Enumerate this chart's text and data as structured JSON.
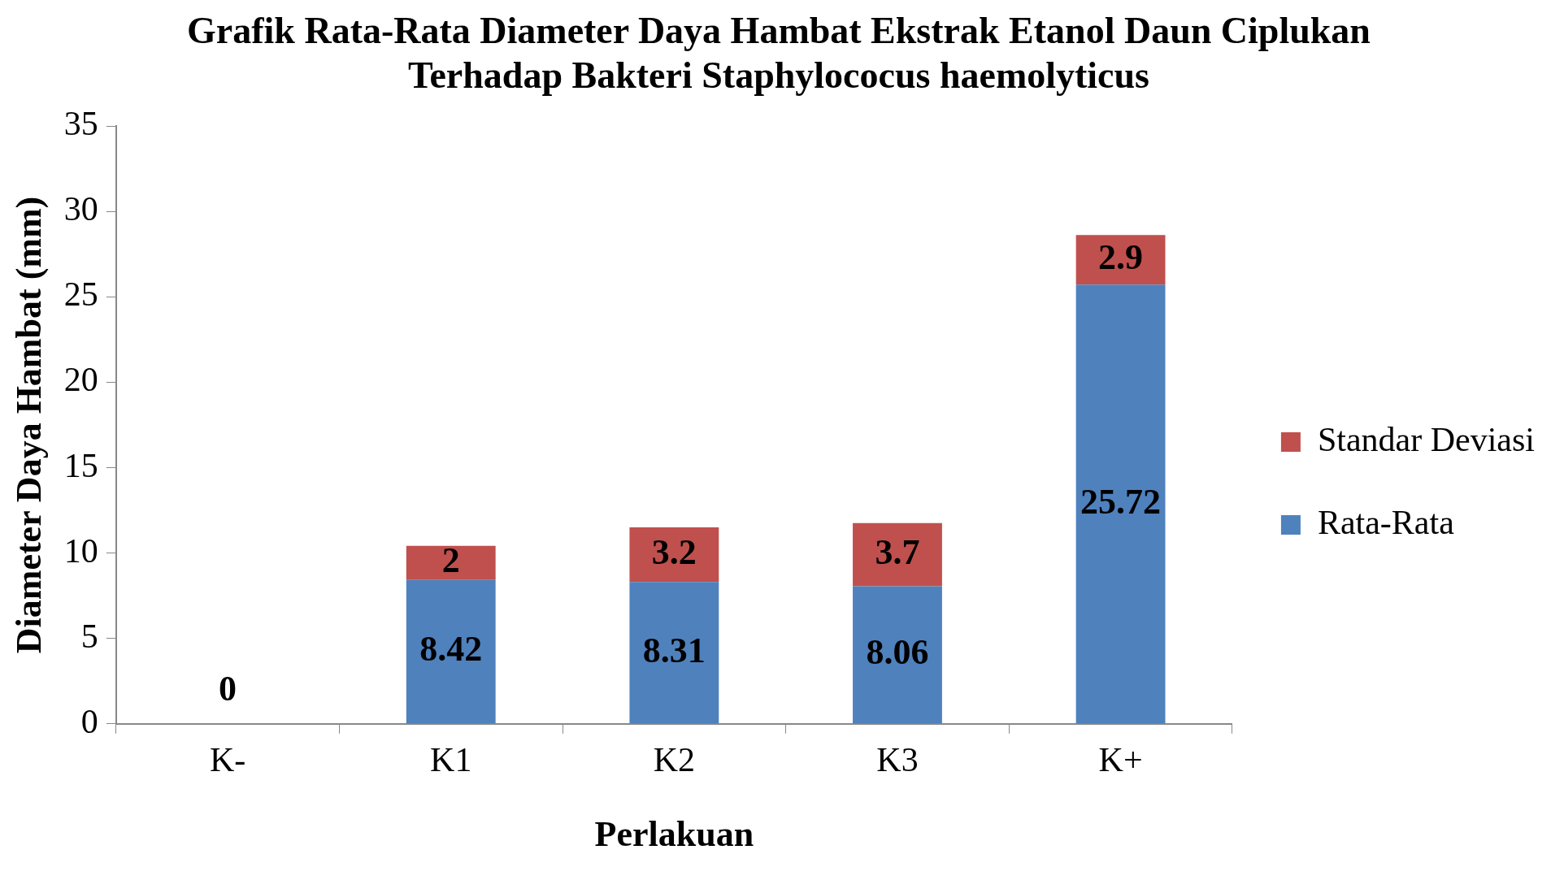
{
  "chart_data": {
    "type": "bar",
    "stacked": true,
    "title": "Grafik Rata-Rata Diameter Daya Hambat Ekstrak Etanol Daun Ciplukan Terhadap Bakteri Staphylococus haemolyticus",
    "xlabel": "Perlakuan",
    "ylabel": "Diameter Daya Hambat (mm)",
    "categories": [
      "K-",
      "K1",
      "K2",
      "K3",
      "K+"
    ],
    "series": [
      {
        "name": "Rata-Rata",
        "color": "#4f81bd",
        "values": [
          0,
          8.42,
          8.31,
          8.06,
          25.72
        ],
        "value_labels": [
          "0",
          "8.42",
          "8.31",
          "8.06",
          "25.72"
        ]
      },
      {
        "name": "Standar Deviasi",
        "color": "#c0504d",
        "values": [
          null,
          2,
          3.2,
          3.7,
          2.9
        ],
        "value_labels": [
          null,
          "2",
          "3.2",
          "3.7",
          "2.9"
        ]
      }
    ],
    "ylim": [
      0,
      35
    ],
    "yticks": [
      0,
      5,
      10,
      15,
      20,
      25,
      30,
      35
    ],
    "grid": false,
    "legend": "right"
  }
}
